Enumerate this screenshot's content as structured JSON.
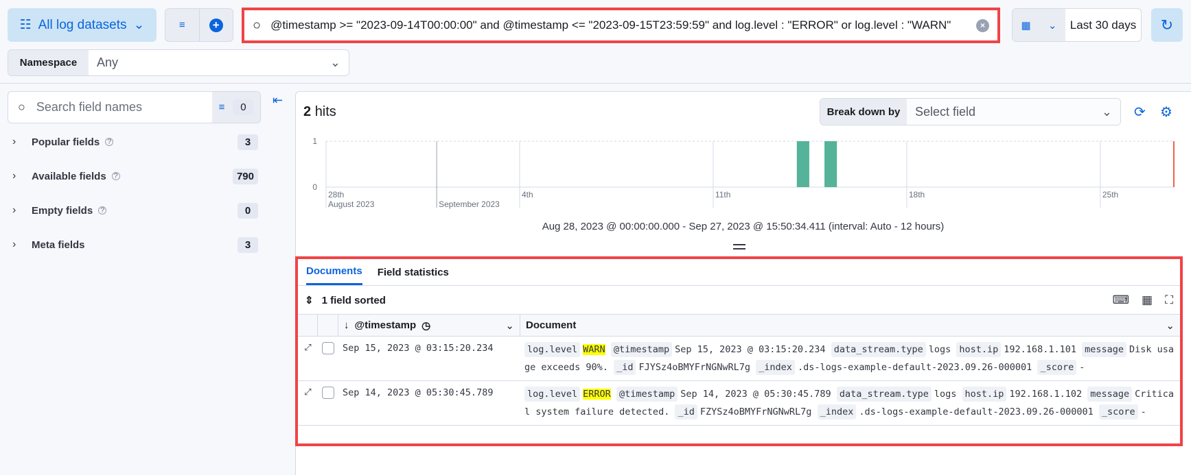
{
  "top": {
    "datasets_label": "All log datasets",
    "query": "@timestamp >= \"2023-09-14T00:00:00\" and @timestamp <= \"2023-09-15T23:59:59\" and log.level : \"ERROR\" or  log.level : \"WARN\"",
    "date_label": "Last 30 days"
  },
  "namespace": {
    "label": "Namespace",
    "value": "Any"
  },
  "sidebar": {
    "search_placeholder": "Search field names",
    "filter_count": "0",
    "sections": [
      {
        "label": "Popular fields",
        "count": "3",
        "help": true
      },
      {
        "label": "Available fields",
        "count": "790",
        "help": true
      },
      {
        "label": "Empty fields",
        "count": "0",
        "help": true
      },
      {
        "label": "Meta fields",
        "count": "3",
        "help": false
      }
    ]
  },
  "histogram": {
    "hits_count": "2",
    "hits_label": "hits",
    "breakdown_label": "Break down by",
    "breakdown_placeholder": "Select field",
    "range_text": "Aug 28, 2023 @ 00:00:00.000 - Sep 27, 2023 @ 15:50:34.411 (interval: Auto - 12 hours)"
  },
  "chart_data": {
    "type": "bar",
    "interval": "12 hours",
    "bar_color": "#54b399",
    "x_ticks": [
      {
        "label": "28th",
        "sub": "August 2023",
        "day": 0
      },
      {
        "label": "",
        "sub": "September 2023",
        "day": 4
      },
      {
        "label": "4th",
        "day": 7
      },
      {
        "label": "11th",
        "day": 14
      },
      {
        "label": "18th",
        "day": 21
      },
      {
        "label": "25th",
        "day": 28
      }
    ],
    "y_ticks": [
      "0",
      "1"
    ],
    "ylim": [
      0,
      1
    ],
    "x_start": "2023-08-28T00:00:00",
    "x_end": "2023-09-27T15:50:34",
    "bars": [
      {
        "x": "2023-09-14T00:00",
        "value": 1
      },
      {
        "x": "2023-09-15T00:00",
        "value": 1
      }
    ]
  },
  "docs": {
    "tabs": [
      "Documents",
      "Field statistics"
    ],
    "sorted_label": "1 field sorted",
    "col_timestamp": "@timestamp",
    "col_document": "Document",
    "rows": [
      {
        "timestamp": "Sep 15, 2023 @ 03:15:20.234",
        "level": "WARN",
        "message": "Disk usage exceeds 90%.",
        "id": "FJYSz4oBMYFrNGNwRL7g",
        "index": ".ds-logs-example-default-2023.09.26-000001",
        "type": "logs",
        "ip": "192.168.1.101",
        "score": "-"
      },
      {
        "timestamp": "Sep 14, 2023 @ 05:30:45.789",
        "level": "ERROR",
        "message": "Critical system failure detected.",
        "id": "FZYSz4oBMYFrNGNwRL7g",
        "index": ".ds-logs-example-default-2023.09.26-000001",
        "type": "logs",
        "ip": "192.168.1.102",
        "score": "-"
      }
    ]
  }
}
